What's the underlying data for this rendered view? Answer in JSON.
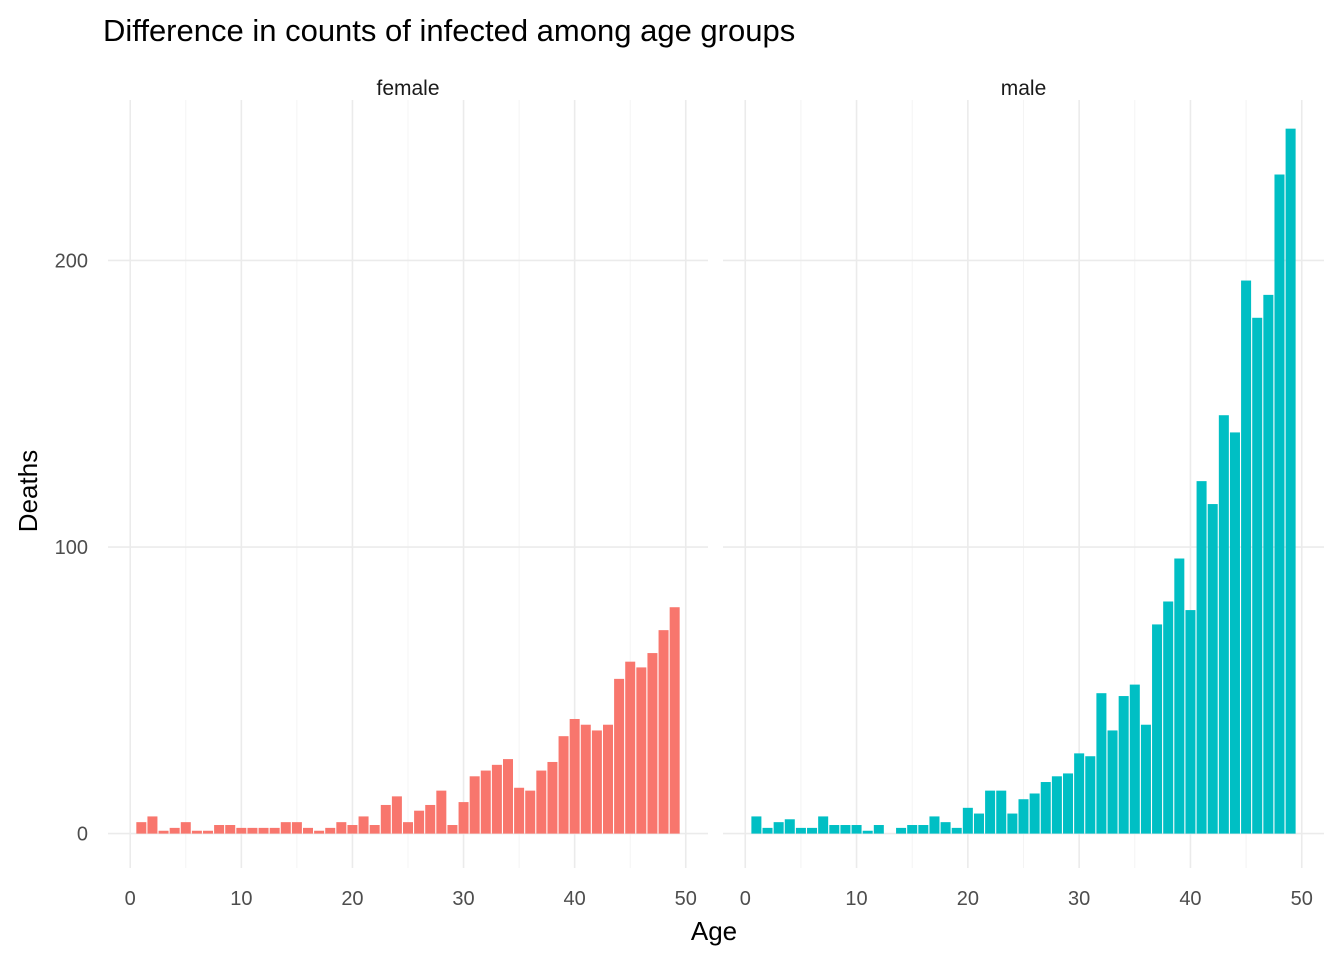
{
  "chart_data": {
    "type": "bar",
    "title": "Difference in counts of infected among age groups",
    "xlabel": "Age",
    "ylabel": "Deaths",
    "xlim": [
      -2,
      52
    ],
    "ylim": [
      -12,
      256
    ],
    "x_ticks": [
      0,
      10,
      20,
      30,
      40,
      50
    ],
    "y_ticks": [
      0,
      100,
      200
    ],
    "grid": true,
    "legend": "none",
    "facets": [
      {
        "name": "female",
        "color": "#F8766D",
        "x": [
          1,
          2,
          3,
          4,
          5,
          6,
          7,
          8,
          9,
          10,
          11,
          12,
          13,
          14,
          15,
          16,
          17,
          18,
          19,
          20,
          21,
          22,
          23,
          24,
          25,
          26,
          27,
          28,
          29,
          30,
          31,
          32,
          33,
          34,
          35,
          36,
          37,
          38,
          39,
          40,
          41,
          42,
          43,
          44,
          45,
          46,
          47,
          48,
          49
        ],
        "values": [
          4,
          6,
          1,
          2,
          4,
          1,
          1,
          3,
          3,
          2,
          2,
          2,
          2,
          4,
          4,
          2,
          1,
          2,
          4,
          3,
          6,
          3,
          10,
          13,
          4,
          8,
          10,
          15,
          3,
          11,
          20,
          22,
          24,
          26,
          16,
          15,
          22,
          25,
          34,
          40,
          38,
          36,
          38,
          54,
          60,
          58,
          63,
          71,
          79
        ]
      },
      {
        "name": "male",
        "color": "#00BFC4",
        "x": [
          1,
          2,
          3,
          4,
          5,
          6,
          7,
          8,
          9,
          10,
          11,
          12,
          13,
          14,
          15,
          16,
          17,
          18,
          19,
          20,
          21,
          22,
          23,
          24,
          25,
          26,
          27,
          28,
          29,
          30,
          31,
          32,
          33,
          34,
          35,
          36,
          37,
          38,
          39,
          40,
          41,
          42,
          43,
          44,
          45,
          46,
          47,
          48,
          49
        ],
        "values": [
          6,
          2,
          4,
          5,
          2,
          2,
          6,
          3,
          3,
          3,
          1,
          3,
          0,
          2,
          3,
          3,
          6,
          4,
          2,
          9,
          7,
          15,
          15,
          7,
          12,
          14,
          18,
          20,
          21,
          28,
          27,
          49,
          36,
          48,
          52,
          38,
          73,
          81,
          96,
          78,
          123,
          115,
          146,
          140,
          193,
          180,
          188,
          230,
          246
        ]
      }
    ]
  }
}
